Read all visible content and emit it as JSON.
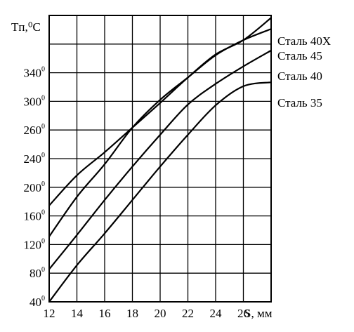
{
  "chart_data": {
    "type": "line",
    "ylabel": "Tп,⁰С",
    "xlabel": "S, мм",
    "x_ticks": [
      "12",
      "14",
      "16",
      "18",
      "20",
      "22",
      "24",
      "26"
    ],
    "y_ticks": [
      {
        "base": "40",
        "sup": "0"
      },
      {
        "base": "80",
        "sup": "0"
      },
      {
        "base": "120",
        "sup": "0"
      },
      {
        "base": "160",
        "sup": "0"
      },
      {
        "base": "200",
        "sup": "0"
      },
      {
        "base": "240",
        "sup": "0"
      },
      {
        "base": "260",
        "sup": "0"
      },
      {
        "base": "300",
        "sup": "0"
      },
      {
        "base": "340",
        "sup": "0"
      }
    ],
    "grid": true,
    "series": [
      {
        "name": "Сталь 40Х",
        "x": [
          12,
          14,
          16,
          18,
          20,
          22,
          24,
          26,
          28
        ],
        "y": [
          161,
          199,
          228,
          259,
          290,
          322,
          351,
          369,
          397
        ]
      },
      {
        "name": "Сталь 45",
        "x": [
          12,
          14,
          16,
          18,
          20,
          22,
          24,
          26,
          28
        ],
        "y": [
          122,
          172,
          213,
          259,
          294,
          322,
          350,
          369,
          383
        ]
      },
      {
        "name": "Сталь 40",
        "x": [
          12,
          14,
          16,
          18,
          20,
          22,
          24,
          26,
          28
        ],
        "y": [
          81,
          124,
          168,
          210,
          250,
          288,
          314,
          336,
          356
        ]
      },
      {
        "name": "Сталь 35",
        "x": [
          12,
          14,
          16,
          18,
          20,
          22,
          24,
          26,
          28
        ],
        "y": [
          40,
          86,
          126,
          168,
          210,
          250,
          287,
          311,
          316
        ]
      }
    ]
  }
}
